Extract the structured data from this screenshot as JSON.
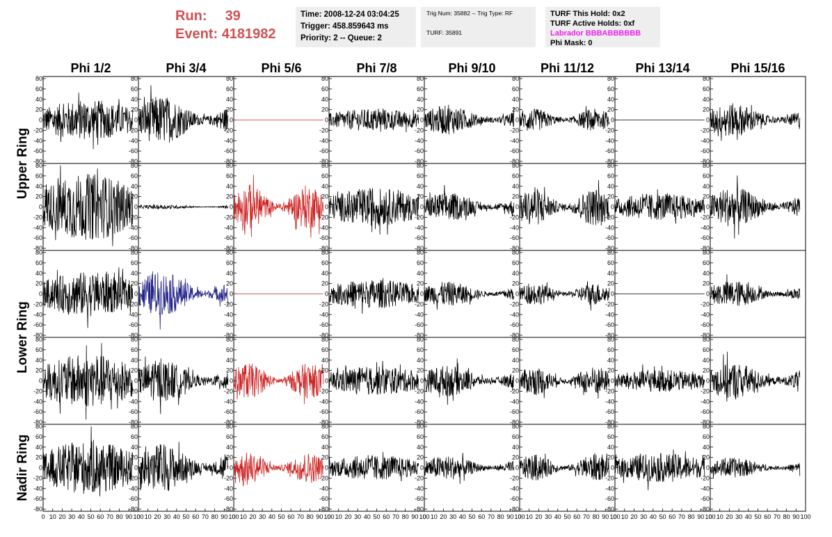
{
  "header": {
    "run_label": "Run:",
    "run_value": "39",
    "event_label": "Event:",
    "event_value": "4181982",
    "time": "Time: 2008-12-24 03:04:25",
    "trigger": "Trigger: 458.859643 ms",
    "priority": "Priority: 2 -- Queue: 2",
    "trig_num": "Trig Num: 35882 -- Trig Type: RF",
    "turf": "TURF: 35891",
    "turf_hold": "TURF This Hold: 0x2",
    "turf_active": "TURF Active Holds: 0xf",
    "labrador": "Labrador BBBABBBBBB",
    "phi_mask": "Phi Mask: 0"
  },
  "colors": {
    "header_red": "#d05050",
    "info_bg": "#eeeeee",
    "labrador": "#ee22ee",
    "trace_black": "#000000",
    "trace_red": "#cc2222",
    "trace_blue": "#222288"
  },
  "chart_data": {
    "type": "line",
    "columns": [
      "Phi 1/2",
      "Phi 3/4",
      "Phi 5/6",
      "Phi 7/8",
      "Phi 9/10",
      "Phi 11/12",
      "Phi 13/14",
      "Phi 15/16"
    ],
    "ring_labels": [
      {
        "text": "Upper Ring",
        "rows": [
          0,
          1
        ]
      },
      {
        "text": "Lower Ring",
        "rows": [
          2,
          3
        ]
      },
      {
        "text": "Nadir Ring",
        "rows": [
          4
        ]
      }
    ],
    "xlim": [
      0,
      100
    ],
    "ylim": [
      -80,
      80
    ],
    "xticks": [
      0,
      10,
      20,
      30,
      40,
      50,
      60,
      70,
      80,
      90,
      100
    ],
    "yticks": [
      -80,
      -60,
      -40,
      -20,
      0,
      20,
      40,
      60,
      80
    ],
    "samples_per_trace": 260,
    "x_max": 94,
    "panels": [
      [
        {
          "color": "black",
          "amp": 18
        },
        {
          "color": "black",
          "amp": 22
        },
        {
          "color": "red",
          "amp": 0
        },
        {
          "color": "black",
          "amp": 10
        },
        {
          "color": "black",
          "amp": 13
        },
        {
          "color": "black",
          "amp": 10
        },
        {
          "color": "black",
          "amp": 0
        },
        {
          "color": "black",
          "amp": 15
        }
      ],
      [
        {
          "color": "black",
          "amp": 30
        },
        {
          "color": "black",
          "amp": 2
        },
        {
          "color": "red",
          "amp": 20
        },
        {
          "color": "black",
          "amp": 17
        },
        {
          "color": "black",
          "amp": 13
        },
        {
          "color": "black",
          "amp": 17
        },
        {
          "color": "black",
          "amp": 12
        },
        {
          "color": "black",
          "amp": 18
        }
      ],
      [
        {
          "color": "black",
          "amp": 20
        },
        {
          "color": "blue",
          "amp": 20
        },
        {
          "color": "red",
          "amp": 0
        },
        {
          "color": "black",
          "amp": 13
        },
        {
          "color": "black",
          "amp": 11
        },
        {
          "color": "black",
          "amp": 10
        },
        {
          "color": "black",
          "amp": 0
        },
        {
          "color": "black",
          "amp": 12
        }
      ],
      [
        {
          "color": "black",
          "amp": 24
        },
        {
          "color": "black",
          "amp": 19
        },
        {
          "color": "red",
          "amp": 16
        },
        {
          "color": "black",
          "amp": 13
        },
        {
          "color": "black",
          "amp": 14
        },
        {
          "color": "black",
          "amp": 13
        },
        {
          "color": "black",
          "amp": 10
        },
        {
          "color": "black",
          "amp": 17
        }
      ],
      [
        {
          "color": "black",
          "amp": 24
        },
        {
          "color": "black",
          "amp": 22
        },
        {
          "color": "red",
          "amp": 14
        },
        {
          "color": "black",
          "amp": 11
        },
        {
          "color": "black",
          "amp": 11
        },
        {
          "color": "black",
          "amp": 12
        },
        {
          "color": "black",
          "amp": 13
        },
        {
          "color": "black",
          "amp": 9
        }
      ]
    ]
  }
}
